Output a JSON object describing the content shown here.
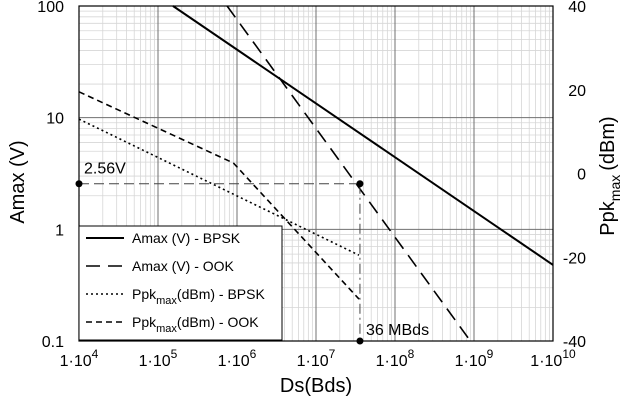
{
  "chart_data": {
    "type": "line",
    "xlabel": "Ds(Bds)",
    "ylabel_left": "Amax (V)",
    "ylabel_right_main": "Ppk",
    "ylabel_right_sub": "max",
    "ylabel_right_unit": "(dBm)",
    "x_scale": "log",
    "y_left_scale": "log",
    "xlim": [
      10000,
      10000000000
    ],
    "ylim_left": [
      0.1,
      100
    ],
    "ylim_right": [
      -40,
      40
    ],
    "grid": true,
    "legend_position": "bottom-left",
    "x_ticks": [
      {
        "value": 10000,
        "base": "1·10",
        "exp": "4"
      },
      {
        "value": 100000,
        "base": "1·10",
        "exp": "5"
      },
      {
        "value": 1000000,
        "base": "1·10",
        "exp": "6"
      },
      {
        "value": 10000000,
        "base": "1·10",
        "exp": "7"
      },
      {
        "value": 100000000,
        "base": "1·10",
        "exp": "8"
      },
      {
        "value": 1000000000,
        "base": "1·10",
        "exp": "9"
      },
      {
        "value": 10000000000,
        "base": "1·10",
        "exp": "10"
      }
    ],
    "y_left_ticks": [
      {
        "value": 0.1,
        "label": "0.1"
      },
      {
        "value": 1,
        "label": "1"
      },
      {
        "value": 10,
        "label": "10"
      },
      {
        "value": 100,
        "label": "100"
      }
    ],
    "y_right_ticks": [
      {
        "value": -40,
        "label": "-40"
      },
      {
        "value": -20,
        "label": "-20"
      },
      {
        "value": 0,
        "label": "0"
      },
      {
        "value": 20,
        "label": "20"
      },
      {
        "value": 40,
        "label": "40"
      }
    ],
    "series": [
      {
        "name": "Amax (V) - BPSK",
        "axis": "left",
        "style": "solid",
        "points": [
          [
            155000,
            100
          ],
          [
            10000000000,
            0.48
          ]
        ]
      },
      {
        "name": "Amax (V) - OOK",
        "axis": "left",
        "style": "longdash",
        "points": [
          [
            750000,
            100
          ],
          [
            900000000,
            0.1
          ]
        ]
      },
      {
        "name": "Ppk (dBm) - BPSK",
        "axis": "right",
        "style": "dotted",
        "points": [
          [
            10000,
            13
          ],
          [
            35000000,
            -19.5
          ]
        ]
      },
      {
        "name": "Ppk (dBm) - OOK",
        "axis": "right",
        "style": "shortdash",
        "points": [
          [
            10000,
            19.5
          ],
          [
            900000,
            2.5
          ],
          [
            35000000,
            -30
          ]
        ]
      }
    ],
    "annotations": {
      "voltage": {
        "text": "2.56V",
        "value": 2.56
      },
      "rate": {
        "text": "36 MBds",
        "value": 36000000
      },
      "marker_points": [
        [
          10000,
          2.56
        ],
        [
          36000000,
          2.56
        ],
        [
          36000000,
          0.1
        ]
      ]
    },
    "legend": [
      {
        "main": "Amax (V) - BPSK",
        "sub": "",
        "after": ""
      },
      {
        "main": "Amax (V) - OOK",
        "sub": "",
        "after": ""
      },
      {
        "main": "Ppk",
        "sub": "max",
        "after": "(dBm) - BPSK"
      },
      {
        "main": "Ppk",
        "sub": "max",
        "after": "(dBm) - OOK"
      }
    ]
  }
}
